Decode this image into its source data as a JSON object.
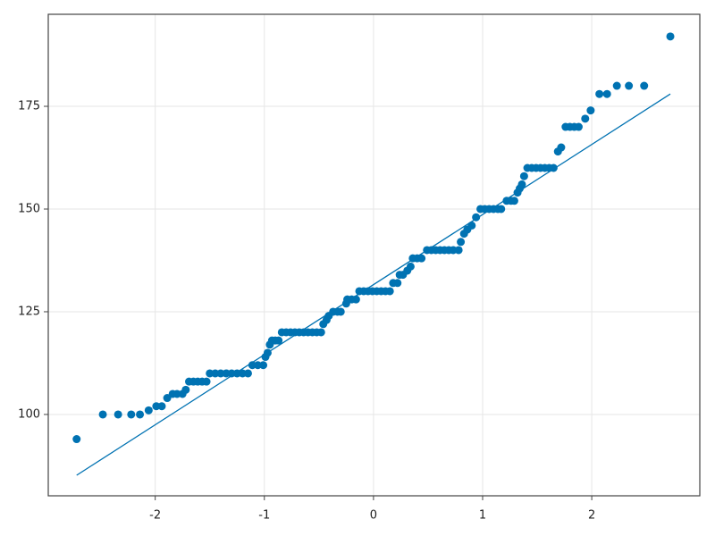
{
  "chart_data": {
    "type": "scatter",
    "color": "#0072b2",
    "grid": true,
    "xlim": [
      -2.98,
      2.99
    ],
    "ylim": [
      80.2,
      197.4
    ],
    "xticks": [
      -2,
      -1,
      0,
      1,
      2
    ],
    "yticks": [
      100,
      125,
      150,
      175
    ],
    "x": [
      -2.72,
      -2.48,
      -2.34,
      -2.22,
      -2.14,
      -2.06,
      -1.99,
      -1.94,
      -1.89,
      -1.84,
      -1.8,
      -1.75,
      -1.72,
      -1.69,
      -1.65,
      -1.61,
      -1.57,
      -1.53,
      -1.5,
      -1.45,
      -1.4,
      -1.35,
      -1.3,
      -1.25,
      -1.2,
      -1.15,
      -1.11,
      -1.06,
      -1.01,
      -0.99,
      -0.97,
      -0.95,
      -0.93,
      -0.9,
      -0.87,
      -0.84,
      -0.8,
      -0.76,
      -0.72,
      -0.68,
      -0.64,
      -0.6,
      -0.56,
      -0.52,
      -0.48,
      -0.46,
      -0.43,
      -0.41,
      -0.37,
      -0.33,
      -0.3,
      -0.25,
      -0.24,
      -0.2,
      -0.16,
      -0.13,
      -0.09,
      -0.05,
      -0.01,
      0.03,
      0.07,
      0.11,
      0.15,
      0.18,
      0.22,
      0.24,
      0.27,
      0.31,
      0.34,
      0.36,
      0.4,
      0.44,
      0.49,
      0.53,
      0.57,
      0.61,
      0.65,
      0.69,
      0.73,
      0.78,
      0.8,
      0.83,
      0.86,
      0.9,
      0.94,
      0.98,
      1.02,
      1.06,
      1.1,
      1.14,
      1.17,
      1.22,
      1.26,
      1.29,
      1.32,
      1.34,
      1.36,
      1.38,
      1.41,
      1.45,
      1.49,
      1.53,
      1.57,
      1.61,
      1.65,
      1.69,
      1.72,
      1.76,
      1.8,
      1.84,
      1.88,
      1.94,
      1.99,
      2.07,
      2.14,
      2.23,
      2.34,
      2.48,
      2.72
    ],
    "values": [
      94,
      100,
      100,
      100,
      100,
      101,
      102,
      102,
      104,
      105,
      105,
      105,
      106,
      108,
      108,
      108,
      108,
      108,
      110,
      110,
      110,
      110,
      110,
      110,
      110,
      110,
      112,
      112,
      112,
      114,
      115,
      117,
      118,
      118,
      118,
      120,
      120,
      120,
      120,
      120,
      120,
      120,
      120,
      120,
      120,
      122,
      123,
      124,
      125,
      125,
      125,
      127,
      128,
      128,
      128,
      130,
      130,
      130,
      130,
      130,
      130,
      130,
      130,
      132,
      132,
      134,
      134,
      135,
      136,
      138,
      138,
      138,
      140,
      140,
      140,
      140,
      140,
      140,
      140,
      140,
      142,
      144,
      145,
      146,
      148,
      150,
      150,
      150,
      150,
      150,
      150,
      152,
      152,
      152,
      154,
      155,
      156,
      158,
      160,
      160,
      160,
      160,
      160,
      160,
      160,
      164,
      165,
      170,
      170,
      170,
      170,
      172,
      174,
      178,
      178,
      180,
      180,
      180,
      192
    ],
    "fit_line": {
      "x": [
        -2.72,
        2.72
      ],
      "values": [
        85.2,
        178.0
      ]
    }
  }
}
